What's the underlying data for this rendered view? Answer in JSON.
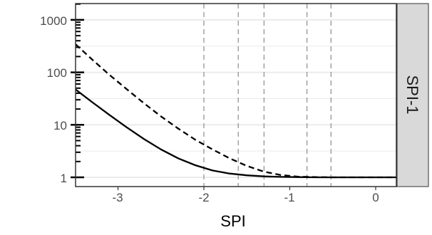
{
  "chart_data": {
    "type": "line",
    "title": "",
    "xlabel": "SPI",
    "ylabel": "",
    "facet_label": "SPI-1",
    "x_ticks": [
      -3,
      -2,
      -1,
      0
    ],
    "x_tick_labels": [
      "-3",
      "-2",
      "-1",
      "0"
    ],
    "xlim": [
      -3.65,
      0.25
    ],
    "y_scale": "log10",
    "y_ticks": [
      1,
      10,
      100,
      1000
    ],
    "y_tick_labels": [
      "1",
      "10",
      "100",
      "1000"
    ],
    "ylim": [
      0.8,
      1800
    ],
    "vlines": [
      -2.0,
      -1.6,
      -1.3,
      -0.8,
      -0.52
    ],
    "grid": true,
    "legend": "none",
    "colors": {
      "panel_background": "#ffffff",
      "grid": "#ebebeb",
      "strip": "#d9d9d9",
      "line": "#000000",
      "vline": "#8c8c8c"
    },
    "series": [
      {
        "style": "solid",
        "x": [
          -3.65,
          -3.5,
          -3.3,
          -3.1,
          -2.9,
          -2.7,
          -2.5,
          -2.3,
          -2.1,
          -1.9,
          -1.7,
          -1.5,
          -1.3,
          -1.1,
          -0.9,
          -0.7,
          -0.5,
          -0.2,
          0.25
        ],
        "y": [
          75,
          48,
          27,
          15.5,
          9,
          5.4,
          3.4,
          2.3,
          1.7,
          1.35,
          1.18,
          1.09,
          1.04,
          1.02,
          1.01,
          1.0,
          1.0,
          1.0,
          1.0
        ]
      },
      {
        "style": "dashed",
        "x": [
          -3.65,
          -3.5,
          -3.3,
          -3.1,
          -2.9,
          -2.7,
          -2.5,
          -2.3,
          -2.1,
          -1.9,
          -1.7,
          -1.5,
          -1.3,
          -1.1,
          -0.9,
          -0.7,
          -0.5,
          -0.2,
          0.25
        ],
        "y": [
          600,
          350,
          175,
          90,
          48,
          26,
          14.5,
          8.5,
          5.2,
          3.4,
          2.3,
          1.65,
          1.28,
          1.1,
          1.03,
          1.01,
          1.0,
          1.0,
          1.0
        ]
      }
    ]
  }
}
